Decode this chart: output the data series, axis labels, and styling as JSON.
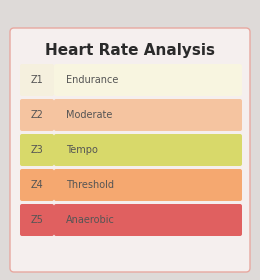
{
  "title": "Heart Rate Analysis",
  "background_color": "#dedad8",
  "card_color": "#f5efee",
  "card_border_color": "#e8a8a0",
  "zones": [
    {
      "label": "Z1",
      "name": "Endurance",
      "label_color": "#f5f0de",
      "bar_color": "#f8f5e0",
      "text_color": "#555555"
    },
    {
      "label": "Z2",
      "name": "Moderate",
      "label_color": "#f5c4a0",
      "bar_color": "#f5c4a0",
      "text_color": "#555555"
    },
    {
      "label": "Z3",
      "name": "Tempo",
      "label_color": "#d8d96a",
      "bar_color": "#d8d96a",
      "text_color": "#555555"
    },
    {
      "label": "Z4",
      "name": "Threshold",
      "label_color": "#f5a870",
      "bar_color": "#f5a870",
      "text_color": "#555555"
    },
    {
      "label": "Z5",
      "name": "Anaerobic",
      "label_color": "#e06060",
      "bar_color": "#e06060",
      "text_color": "#555555"
    }
  ],
  "title_fontsize": 11,
  "label_fontsize": 7,
  "name_fontsize": 7
}
